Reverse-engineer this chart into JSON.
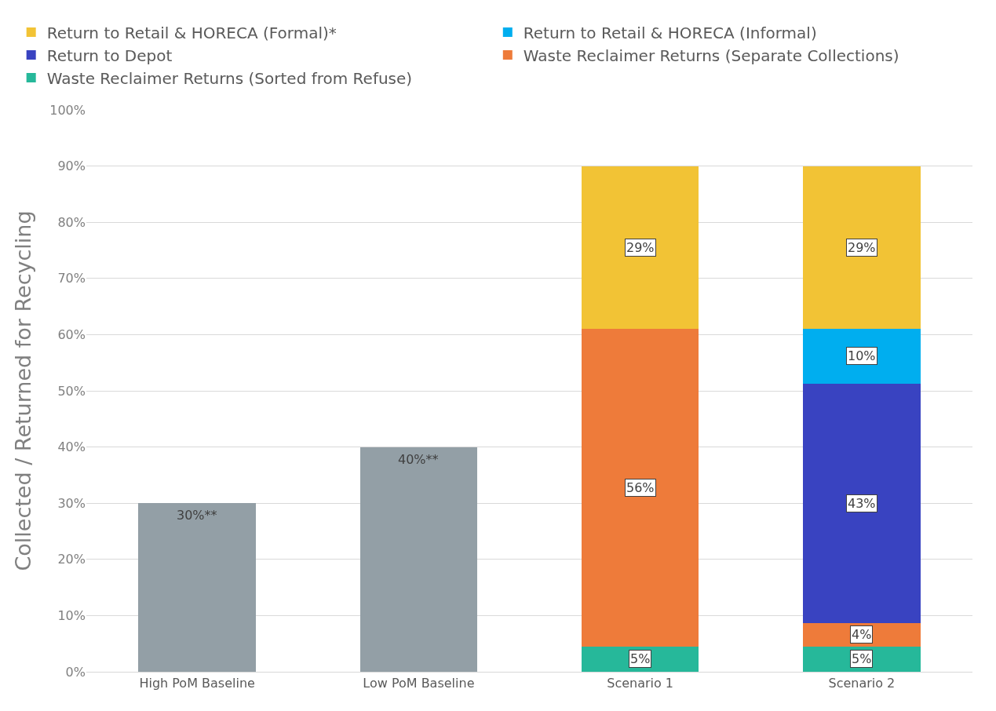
{
  "chart_data": {
    "type": "bar",
    "stacked": true,
    "categories": [
      "High PoM Baseline",
      "Low PoM Baseline",
      "Scenario 1",
      "Scenario 2"
    ],
    "ylabel": "Collected / Returned for Recycling",
    "ylim": [
      0,
      100
    ],
    "yticks": [
      {
        "value": 0,
        "label": "0%"
      },
      {
        "value": 10,
        "label": "10%"
      },
      {
        "value": 20,
        "label": "20%"
      },
      {
        "value": 30,
        "label": "30%"
      },
      {
        "value": 40,
        "label": "40%"
      },
      {
        "value": 50,
        "label": "50%"
      },
      {
        "value": 60,
        "label": "60%"
      },
      {
        "value": 70,
        "label": "70%"
      },
      {
        "value": 80,
        "label": "80%"
      },
      {
        "value": 90,
        "label": "90%"
      },
      {
        "value": 100,
        "label": "100%"
      }
    ],
    "grid": "y",
    "legend": "top",
    "series": [
      {
        "color": "#939fa6",
        "values": [
          30,
          40,
          null,
          null
        ],
        "value_labels": [
          "30%**",
          "40%**",
          null,
          null
        ]
      },
      {
        "name": "Waste Reclaimer Returns (Sorted from Refuse)",
        "color": "#26b89a",
        "values": [
          null,
          null,
          4.5,
          4.5
        ],
        "value_labels": [
          null,
          null,
          "5%",
          "5%"
        ]
      },
      {
        "name": "Waste Reclaimer Returns (Separate Collections)",
        "color": "#ee7b3a",
        "values": [
          null,
          null,
          56.5,
          4.2
        ],
        "value_labels": [
          null,
          null,
          "56%",
          "4%"
        ]
      },
      {
        "name": "Return to Depot",
        "color": "#3943c1",
        "values": [
          null,
          null,
          null,
          42.6
        ],
        "value_labels": [
          null,
          null,
          null,
          "43%"
        ]
      },
      {
        "name": "Return to Retail & HORECA (Informal)",
        "color": "#00aeef",
        "values": [
          null,
          null,
          null,
          9.7
        ],
        "value_labels": [
          null,
          null,
          null,
          "10%"
        ]
      },
      {
        "name": "Return to Retail & HORECA (Formal)*",
        "color": "#f2c335",
        "values": [
          null,
          null,
          29,
          29
        ],
        "value_labels": [
          null,
          null,
          "29%",
          "29%"
        ]
      }
    ]
  }
}
